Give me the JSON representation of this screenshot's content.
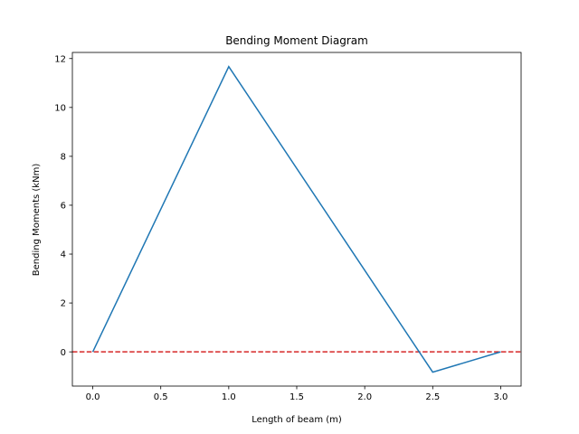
{
  "chart_data": {
    "type": "line",
    "title": "Bending Moment Diagram",
    "xlabel": "Length of beam (m)",
    "ylabel": "Bending Moments (kNm)",
    "xlim": [
      -0.15,
      3.15
    ],
    "ylim": [
      -1.4,
      12.25
    ],
    "xticks": [
      0.0,
      0.5,
      1.0,
      1.5,
      2.0,
      2.5,
      3.0
    ],
    "xtick_labels": [
      "0.0",
      "0.5",
      "1.0",
      "1.5",
      "2.0",
      "2.5",
      "3.0"
    ],
    "yticks": [
      0,
      2,
      4,
      6,
      8,
      10,
      12
    ],
    "ytick_labels": [
      "0",
      "2",
      "4",
      "6",
      "8",
      "10",
      "12"
    ],
    "grid": false,
    "series": [
      {
        "x": [
          0.0,
          1.0,
          2.5,
          3.0
        ],
        "y": [
          0.0,
          11.67,
          -0.83,
          0.0
        ],
        "color": "#1f77b4"
      }
    ],
    "reference_lines": [
      {
        "orientation": "horizontal",
        "y": 0,
        "color": "#d62728",
        "style": "dashed"
      }
    ]
  }
}
